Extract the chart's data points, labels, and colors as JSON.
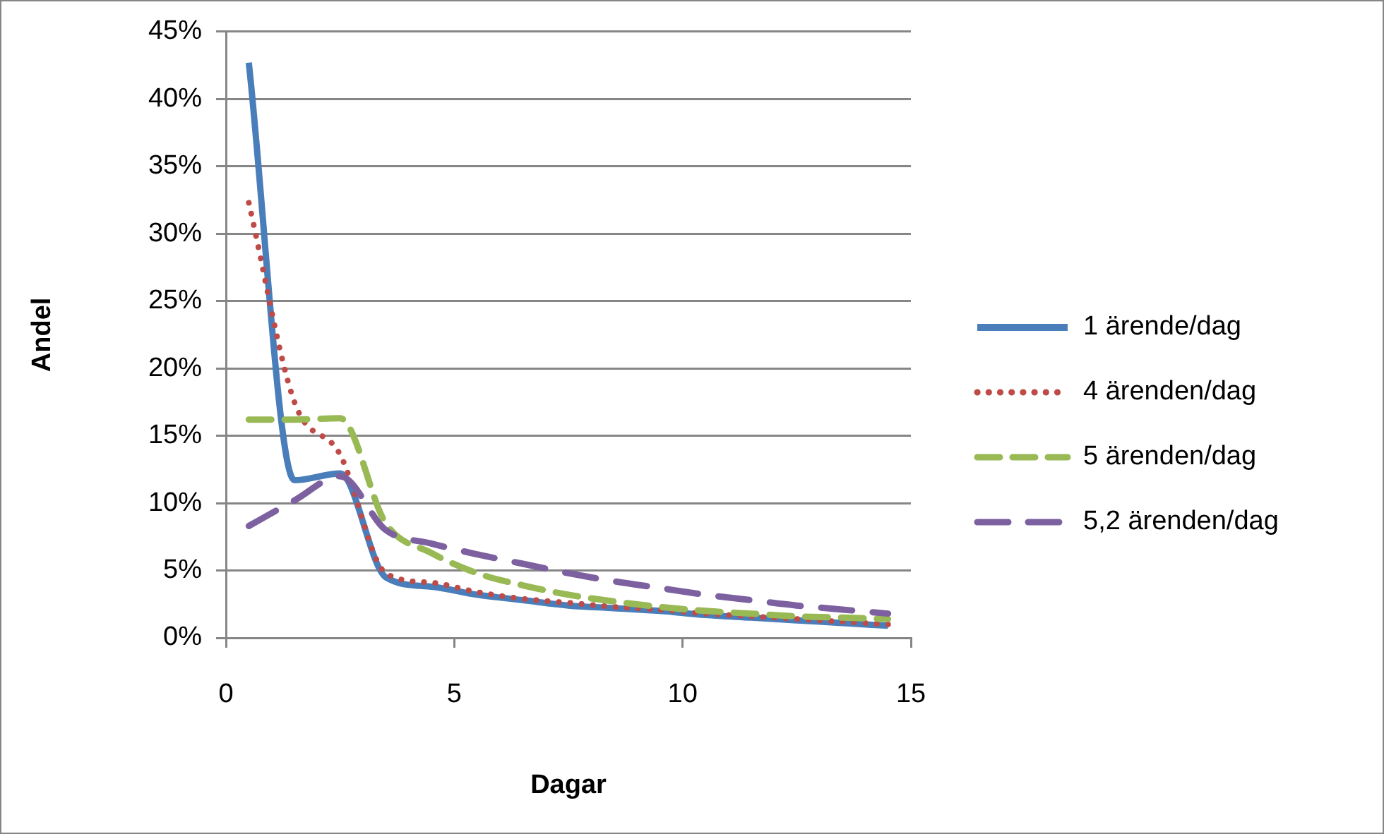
{
  "chart_data": {
    "type": "line",
    "xlabel": "Dagar",
    "ylabel": "Andel",
    "x": [
      0.5,
      1.5,
      2.5,
      3.5,
      4.5,
      5.5,
      6.5,
      7.5,
      8.5,
      9.5,
      10.5,
      11.5,
      12.5,
      13.5,
      14.5
    ],
    "series": [
      {
        "name": "1 ärende/dag",
        "color": "#4a7ebb",
        "line_style": "solid",
        "values": [
          42.7,
          11.7,
          12.2,
          4.5,
          3.8,
          3.2,
          2.8,
          2.4,
          2.2,
          2.0,
          1.7,
          1.5,
          1.3,
          1.1,
          0.9
        ]
      },
      {
        "name": "4 ärenden/dag",
        "color": "#be4b48",
        "line_style": "dotted",
        "values": [
          32.3,
          17.5,
          13.6,
          4.8,
          4.1,
          3.4,
          2.9,
          2.6,
          2.3,
          2.1,
          1.8,
          1.6,
          1.4,
          1.2,
          1.0
        ]
      },
      {
        "name": "5 ärenden/dag",
        "color": "#98b954",
        "line_style": "dashed",
        "values": [
          16.2,
          16.2,
          16.3,
          8.5,
          6.3,
          4.8,
          3.9,
          3.2,
          2.7,
          2.3,
          2.0,
          1.8,
          1.6,
          1.5,
          1.4
        ]
      },
      {
        "name": "5,2 ärenden/dag",
        "color": "#7d60a0",
        "line_style": "dashed",
        "values": [
          8.3,
          10.2,
          12.0,
          8.0,
          7.0,
          6.2,
          5.5,
          4.8,
          4.2,
          3.7,
          3.2,
          2.8,
          2.4,
          2.1,
          1.8
        ]
      }
    ],
    "xlim": [
      0,
      15
    ],
    "xticks": [
      0,
      5,
      10,
      15
    ],
    "ylim": [
      0,
      45
    ],
    "yticks": [
      {
        "value": 0,
        "label": "0%"
      },
      {
        "value": 5,
        "label": "5%"
      },
      {
        "value": 10,
        "label": "10%"
      },
      {
        "value": 15,
        "label": "15%"
      },
      {
        "value": 20,
        "label": "20%"
      },
      {
        "value": 25,
        "label": "25%"
      },
      {
        "value": 30,
        "label": "30%"
      },
      {
        "value": 35,
        "label": "35%"
      },
      {
        "value": 40,
        "label": "40%"
      },
      {
        "value": 45,
        "label": "45%"
      }
    ],
    "grid": "y",
    "legend": "right",
    "marker": "none"
  }
}
